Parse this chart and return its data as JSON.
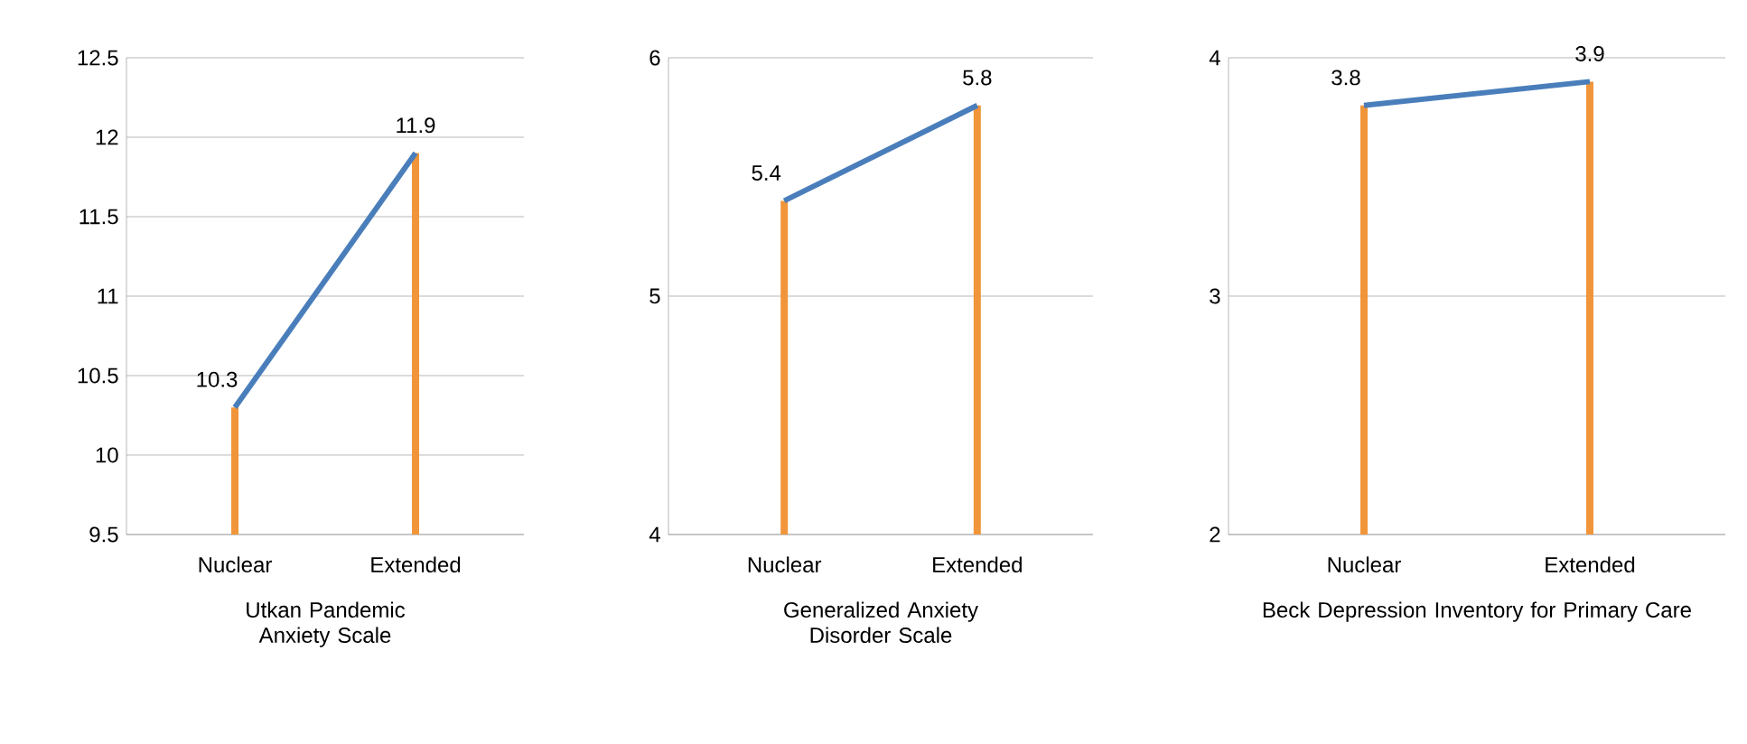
{
  "chart_data": [
    {
      "type": "line",
      "categories": [
        "Nuclear",
        "Extended"
      ],
      "xlabel": "Utkan Pandemic Anxiety Scale",
      "ylim": [
        9.5,
        12.5
      ],
      "yticks": [
        9.5,
        10,
        10.5,
        11,
        11.5,
        12,
        12.5
      ],
      "grid": "y",
      "series": [
        {
          "type": "bar",
          "color": "#f0953a",
          "values": [
            10.3,
            11.9
          ]
        },
        {
          "color": "#4a7ebb",
          "values": [
            10.3,
            11.9
          ],
          "value_labels": [
            "10.3",
            "11.9"
          ]
        }
      ]
    },
    {
      "type": "line",
      "categories": [
        "Nuclear",
        "Extended"
      ],
      "xlabel": "Generalized Anxiety Disorder Scale",
      "ylim": [
        4,
        6
      ],
      "yticks": [
        4,
        5,
        6
      ],
      "grid": "y",
      "series": [
        {
          "type": "bar",
          "color": "#f0953a",
          "values": [
            5.4,
            5.8
          ]
        },
        {
          "color": "#4a7ebb",
          "values": [
            5.4,
            5.8
          ],
          "value_labels": [
            "5.4",
            "5.8"
          ]
        }
      ]
    },
    {
      "type": "line",
      "categories": [
        "Nuclear",
        "Extended"
      ],
      "xlabel": "Beck Depression Inventory for Primary Care",
      "ylim": [
        2,
        4
      ],
      "yticks": [
        2,
        3,
        4
      ],
      "grid": "y",
      "series": [
        {
          "type": "bar",
          "color": "#f0953a",
          "values": [
            3.8,
            3.9
          ]
        },
        {
          "color": "#4a7ebb",
          "values": [
            3.8,
            3.9
          ],
          "value_labels": [
            "3.8",
            "3.9"
          ]
        }
      ]
    }
  ]
}
